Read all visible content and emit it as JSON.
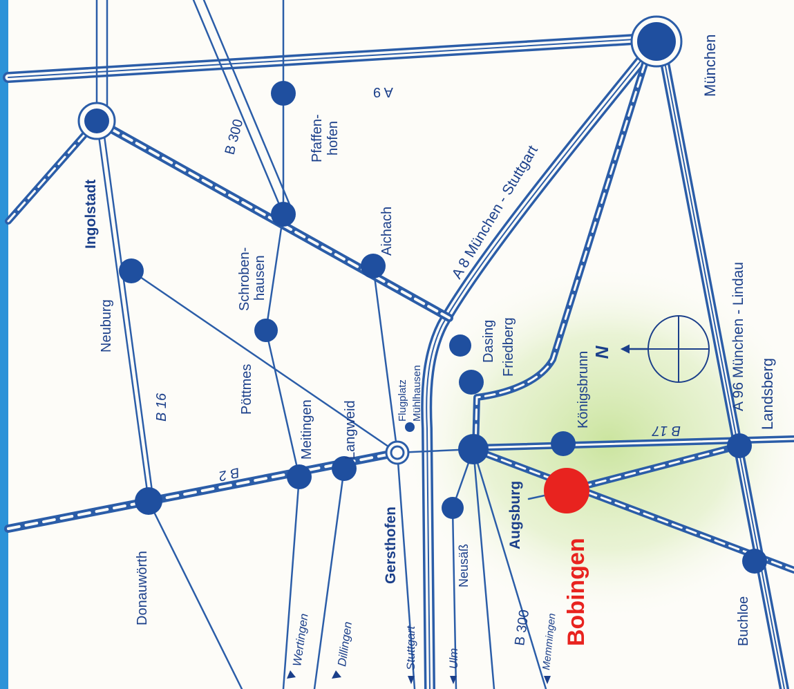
{
  "colors": {
    "road": "#2b5da8",
    "road_dark": "#1b3f8a",
    "city": "#1f4f9f",
    "highlight": "#e8231f",
    "edge_bar": "#2c93d8",
    "glow": "#cfe6a8",
    "paper": "#fdfcf8"
  },
  "cities": {
    "ingolstadt": "Ingolstadt",
    "neuburg": "Neuburg",
    "schrobenhausen_1": "Schroben-",
    "schrobenhausen_2": "hausen",
    "pfaffenhofen_1": "Pfaffen-",
    "pfaffenhofen_2": "hofen",
    "aichach": "Aichach",
    "poettmes": "Pöttmes",
    "meitingen": "Meitingen",
    "langweid": "Langweid",
    "flugplatz_1": "Flugplatz",
    "flugplatz_2": "Mühlhausen",
    "dasing": "Dasing",
    "friedberg": "Friedberg",
    "koenigsbrunn": "Königsbrunn",
    "landsberg": "Landsberg",
    "muenchen": "München",
    "donauwoerth": "Donauwörth",
    "gersthofen": "Gersthofen",
    "neusaess": "Neusäß",
    "augsburg": "Augsburg",
    "bobingen": "Bobingen",
    "buchloe": "Buchloe"
  },
  "roads": {
    "a9": "A 9",
    "b300_top": "B 300",
    "a8": "A 8 München - Stuttgart",
    "a96": "A 96 München - Lindau",
    "b16": "B 16",
    "b2": "B 2",
    "b17": "B 17",
    "b300_bottom": "B 300"
  },
  "directions": {
    "wertingen": "Wertingen",
    "dillingen": "Dillingen",
    "stuttgart": "Stuttgart",
    "ulm": "Ulm",
    "memmingen": "Memmingen"
  },
  "compass": {
    "north": "N"
  }
}
